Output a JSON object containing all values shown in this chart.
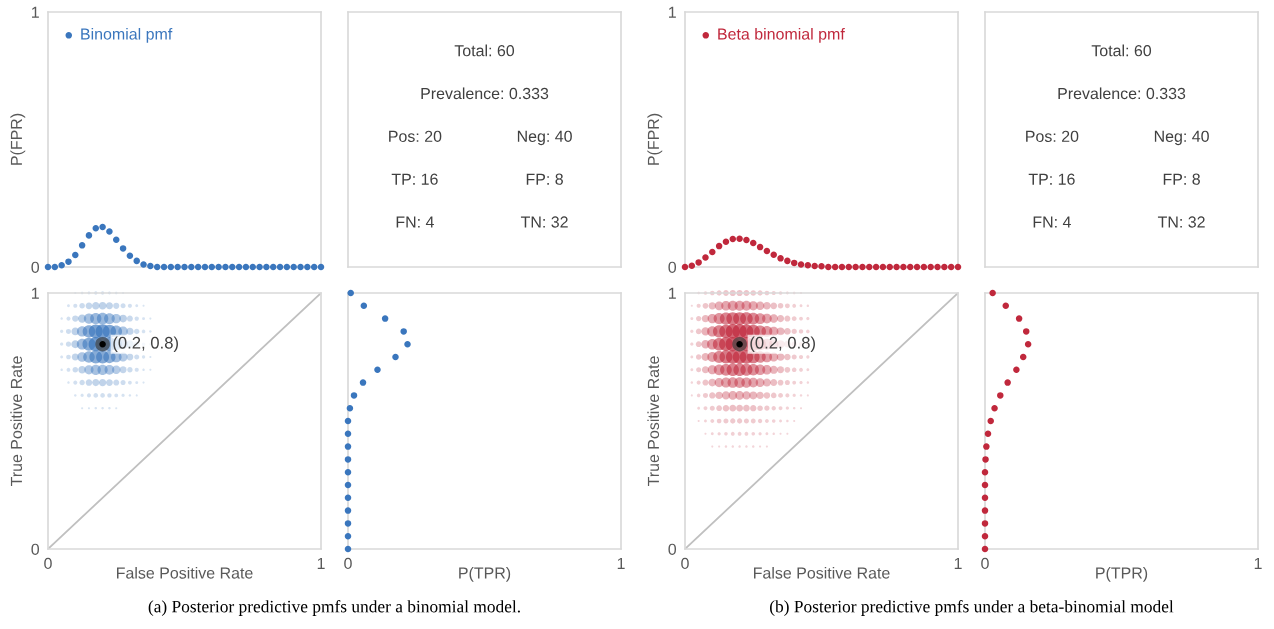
{
  "chart_data": [
    {
      "type": "scatter",
      "ylabel": "P(FPR)",
      "xlim": [
        0,
        1
      ],
      "ylim": [
        0,
        1
      ],
      "yticks": [
        0,
        1
      ],
      "tick_labels": "y",
      "legend": "top left",
      "marker": "circle",
      "x": [
        0,
        0.025,
        0.05,
        0.075,
        0.1,
        0.125,
        0.15,
        0.175,
        0.2,
        0.225,
        0.25,
        0.275,
        0.3,
        0.325,
        0.35,
        0.375,
        0.4,
        0.425,
        0.45,
        0.475,
        0.5,
        0.525,
        0.55,
        0.575,
        0.6,
        0.625,
        0.65,
        0.675,
        0.7,
        0.725,
        0.75,
        0.775,
        0.8,
        0.825,
        0.85,
        0.875,
        0.9,
        0.925,
        0.95,
        0.975,
        1
      ],
      "series": [
        {
          "name": "Binomial pmf",
          "color": "#3a76bd",
          "values": [
            0,
            0,
            0.007,
            0.021,
            0.047,
            0.085,
            0.124,
            0.152,
            0.157,
            0.139,
            0.107,
            0.073,
            0.044,
            0.024,
            0.01,
            0.004,
            0,
            0,
            0,
            0,
            0,
            0,
            0,
            0,
            0,
            0,
            0,
            0,
            0,
            0,
            0,
            0,
            0,
            0,
            0,
            0,
            0,
            0,
            0,
            0,
            0
          ]
        }
      ]
    },
    {
      "type": "other",
      "annotations": [
        "Total: 60",
        "Prevalence: 0.333",
        "Pos: 20",
        "Neg: 40",
        "TP: 16",
        "FP: 8",
        "FN: 4",
        "TN: 32"
      ]
    },
    {
      "type": "scatter",
      "ylabel": "P(FPR)",
      "xlim": [
        0,
        1
      ],
      "ylim": [
        0,
        1
      ],
      "yticks": [
        0,
        1
      ],
      "tick_labels": "y",
      "legend": "top left",
      "marker": "circle",
      "x": [
        0,
        0.025,
        0.05,
        0.075,
        0.1,
        0.125,
        0.15,
        0.175,
        0.2,
        0.225,
        0.25,
        0.275,
        0.3,
        0.325,
        0.35,
        0.375,
        0.4,
        0.425,
        0.45,
        0.475,
        0.5,
        0.525,
        0.55,
        0.575,
        0.6,
        0.625,
        0.65,
        0.675,
        0.7,
        0.725,
        0.75,
        0.775,
        0.8,
        0.825,
        0.85,
        0.875,
        0.9,
        0.925,
        0.95,
        0.975,
        1
      ],
      "series": [
        {
          "name": "Beta binomial pmf",
          "color": "#c0283c",
          "values": [
            0,
            0.005,
            0.018,
            0.037,
            0.059,
            0.082,
            0.099,
            0.11,
            0.111,
            0.106,
            0.094,
            0.078,
            0.063,
            0.048,
            0.034,
            0.024,
            0.016,
            0.01,
            0.007,
            0.004,
            0.003,
            0,
            0,
            0,
            0,
            0,
            0,
            0,
            0,
            0,
            0,
            0,
            0,
            0,
            0,
            0,
            0,
            0,
            0,
            0,
            0
          ]
        }
      ]
    },
    {
      "type": "other",
      "annotations": [
        "Total: 60",
        "Prevalence: 0.333",
        "Pos: 20",
        "Neg: 40",
        "TP: 16",
        "FP: 8",
        "FN: 4",
        "TN: 32"
      ]
    },
    {
      "type": "bubble",
      "xlabel": "False Positive Rate",
      "ylabel": "True Positive Rate",
      "xlim": [
        0,
        1
      ],
      "ylim": [
        0,
        1
      ],
      "xticks": [
        0,
        1
      ],
      "yticks": [
        0,
        1
      ],
      "annotations": [
        {
          "text": "(0.2, 0.8)",
          "x": 0.2,
          "y": 0.8
        },
        "(a) Posterior predictive pmfs under a binomial model."
      ],
      "x": [
        0.05,
        0.075,
        0.1,
        0.125,
        0.15,
        0.175,
        0.2,
        0.225,
        0.25,
        0.275,
        0.3,
        0.325,
        0.35,
        0.375
      ],
      "series": [
        {
          "type": "line",
          "color": "#c0c0c0",
          "x": [
            0,
            1
          ],
          "values": [
            0,
            1
          ]
        },
        {
          "color": "#3a76bd",
          "x": [
            0.1,
            0.125,
            0.15,
            0.175,
            0.2,
            0.225,
            0.25,
            0.275
          ],
          "values": [
            1,
            1,
            1,
            1,
            1,
            1,
            1,
            1
          ],
          "sizes": [
            0.02,
            0.03,
            0.04,
            0.05,
            0.05,
            0.04,
            0.03,
            0.02
          ]
        },
        {
          "color": "#3a76bd",
          "x": [
            0.075,
            0.1,
            0.125,
            0.15,
            0.175,
            0.2,
            0.225,
            0.25,
            0.275,
            0.3,
            0.325,
            0.35
          ],
          "values": [
            0.95,
            0.95,
            0.95,
            0.95,
            0.95,
            0.95,
            0.95,
            0.95,
            0.95,
            0.95,
            0.95,
            0.95
          ],
          "sizes": [
            0.04,
            0.08,
            0.15,
            0.21,
            0.26,
            0.27,
            0.24,
            0.18,
            0.12,
            0.08,
            0.04,
            0.02
          ]
        },
        {
          "color": "#3a76bd",
          "values": [
            0.9,
            0.9,
            0.9,
            0.9,
            0.9,
            0.9,
            0.9,
            0.9,
            0.9,
            0.9,
            0.9,
            0.9,
            0.9,
            0.9
          ],
          "sizes": [
            0.03,
            0.08,
            0.19,
            0.33,
            0.49,
            0.6,
            0.62,
            0.55,
            0.42,
            0.29,
            0.17,
            0.09,
            0.04,
            0.02
          ]
        },
        {
          "color": "#3a76bd",
          "values": [
            0.85,
            0.85,
            0.85,
            0.85,
            0.85,
            0.85,
            0.85,
            0.85,
            0.85,
            0.85,
            0.85,
            0.85,
            0.85,
            0.85
          ],
          "sizes": [
            0.05,
            0.12,
            0.28,
            0.51,
            0.74,
            0.91,
            0.94,
            0.84,
            0.64,
            0.43,
            0.26,
            0.14,
            0.06,
            0.03
          ]
        },
        {
          "color": "#3a76bd",
          "values": [
            0.8,
            0.8,
            0.8,
            0.8,
            0.8,
            0.8,
            0.8,
            0.8,
            0.8,
            0.8,
            0.8,
            0.8,
            0.8,
            0.8
          ],
          "sizes": [
            0.05,
            0.13,
            0.3,
            0.54,
            0.79,
            0.97,
            1,
            0.89,
            0.68,
            0.46,
            0.28,
            0.15,
            0.06,
            0.03
          ]
        },
        {
          "color": "#3a76bd",
          "values": [
            0.75,
            0.75,
            0.75,
            0.75,
            0.75,
            0.75,
            0.75,
            0.75,
            0.75,
            0.75,
            0.75,
            0.75,
            0.75,
            0.75
          ],
          "sizes": [
            0.04,
            0.1,
            0.24,
            0.43,
            0.63,
            0.78,
            0.8,
            0.71,
            0.54,
            0.37,
            0.22,
            0.12,
            0.05,
            0.02
          ]
        },
        {
          "color": "#3a76bd",
          "values": [
            0.7,
            0.7,
            0.7,
            0.7,
            0.7,
            0.7,
            0.7,
            0.7,
            0.7,
            0.7,
            0.7,
            0.7,
            0.7,
            0.7
          ],
          "sizes": [
            0.03,
            0.07,
            0.15,
            0.27,
            0.4,
            0.49,
            0.5,
            0.45,
            0.34,
            0.23,
            0.14,
            0.08,
            0.03,
            0.02
          ]
        },
        {
          "color": "#3a76bd",
          "x": [
            0.075,
            0.1,
            0.125,
            0.15,
            0.175,
            0.2,
            0.225,
            0.25,
            0.275,
            0.3,
            0.325,
            0.35
          ],
          "values": [
            0.65,
            0.65,
            0.65,
            0.65,
            0.65,
            0.65,
            0.65,
            0.65,
            0.65,
            0.65,
            0.65,
            0.65
          ],
          "sizes": [
            0.03,
            0.08,
            0.14,
            0.2,
            0.24,
            0.25,
            0.22,
            0.17,
            0.12,
            0.07,
            0.04,
            0.02
          ]
        },
        {
          "color": "#3a76bd",
          "x": [
            0.1,
            0.125,
            0.15,
            0.175,
            0.2,
            0.225,
            0.25,
            0.275,
            0.3,
            0.325
          ],
          "values": [
            0.6,
            0.6,
            0.6,
            0.6,
            0.6,
            0.6,
            0.6,
            0.6,
            0.6,
            0.6
          ],
          "sizes": [
            0.03,
            0.05,
            0.08,
            0.1,
            0.1,
            0.09,
            0.07,
            0.05,
            0.03,
            0.02
          ]
        },
        {
          "color": "#3a76bd",
          "x": [
            0.125,
            0.15,
            0.175,
            0.2,
            0.225,
            0.25
          ],
          "values": [
            0.55,
            0.55,
            0.55,
            0.55,
            0.55,
            0.55
          ],
          "sizes": [
            0.02,
            0.02,
            0.03,
            0.03,
            0.03,
            0.02
          ]
        },
        {
          "color": "#4d4d4d",
          "x": [
            0.2
          ],
          "values": [
            0.8
          ],
          "sizes": [
            1
          ]
        },
        {
          "type": "scatter",
          "color": "#000000",
          "x": [
            0.2
          ],
          "values": [
            0.8
          ]
        }
      ]
    },
    {
      "type": "scatter",
      "xlabel": "P(TPR)",
      "xlim": [
        0,
        1
      ],
      "ylim": [
        0,
        1
      ],
      "xticks": [
        0,
        1
      ],
      "tick_labels": "x",
      "marker": "circle",
      "series": [
        {
          "color": "#3a76bd",
          "x": [
            0.01,
            0.058,
            0.136,
            0.204,
            0.218,
            0.174,
            0.108,
            0.055,
            0.022,
            0.007,
            0,
            0,
            0,
            0,
            0,
            0,
            0,
            0,
            0,
            0,
            0
          ],
          "values": [
            1,
            0.95,
            0.9,
            0.85,
            0.8,
            0.75,
            0.7,
            0.65,
            0.6,
            0.55,
            0.5,
            0.45,
            0.4,
            0.35,
            0.3,
            0.25,
            0.2,
            0.15,
            0.1,
            0.05,
            0
          ]
        }
      ]
    },
    {
      "type": "bubble",
      "xlabel": "False Positive Rate",
      "ylabel": "True Positive Rate",
      "xlim": [
        0,
        1
      ],
      "ylim": [
        0,
        1
      ],
      "xticks": [
        0,
        1
      ],
      "yticks": [
        0,
        1
      ],
      "annotations": [
        {
          "text": "(0.2, 0.8)",
          "x": 0.2,
          "y": 0.8
        },
        "(b) Posterior predictive pmfs under a beta-binomial model"
      ],
      "x": [
        0.025,
        0.05,
        0.075,
        0.1,
        0.125,
        0.15,
        0.175,
        0.2,
        0.225,
        0.25,
        0.275,
        0.3,
        0.325,
        0.35,
        0.375,
        0.4,
        0.425,
        0.45
      ],
      "series": [
        {
          "type": "line",
          "color": "#c0c0c0",
          "x": [
            0,
            1
          ],
          "values": [
            0,
            1
          ]
        },
        {
          "color": "#c0283c",
          "x": [
            0.05,
            0.075,
            0.1,
            0.125,
            0.15,
            0.175,
            0.2,
            0.225,
            0.25,
            0.275,
            0.3,
            0.325,
            0.35,
            0.375,
            0.4,
            0.425
          ],
          "values": [
            1,
            1,
            1,
            1,
            1,
            1,
            1,
            1,
            1,
            1,
            1,
            1,
            1,
            1,
            1,
            1
          ],
          "sizes": [
            0.03,
            0.06,
            0.1,
            0.13,
            0.16,
            0.18,
            0.18,
            0.17,
            0.15,
            0.13,
            0.1,
            0.08,
            0.06,
            0.04,
            0.03,
            0.02
          ]
        },
        {
          "color": "#c0283c",
          "values": [
            0.95,
            0.95,
            0.95,
            0.95,
            0.95,
            0.95,
            0.95,
            0.95,
            0.95,
            0.95,
            0.95,
            0.95,
            0.95,
            0.95,
            0.95,
            0.95,
            0.95,
            0.95
          ],
          "sizes": [
            0.02,
            0.08,
            0.16,
            0.25,
            0.36,
            0.43,
            0.48,
            0.48,
            0.46,
            0.41,
            0.34,
            0.27,
            0.21,
            0.15,
            0.11,
            0.07,
            0.04,
            0.03
          ]
        },
        {
          "color": "#c0283c",
          "values": [
            0.9,
            0.9,
            0.9,
            0.9,
            0.9,
            0.9,
            0.9,
            0.9,
            0.9,
            0.9,
            0.9,
            0.9,
            0.9,
            0.9,
            0.9,
            0.9,
            0.9,
            0.9
          ],
          "sizes": [
            0.04,
            0.13,
            0.26,
            0.42,
            0.58,
            0.7,
            0.78,
            0.79,
            0.75,
            0.67,
            0.55,
            0.45,
            0.34,
            0.24,
            0.17,
            0.11,
            0.07,
            0.05
          ]
        },
        {
          "color": "#c0283c",
          "values": [
            0.85,
            0.85,
            0.85,
            0.85,
            0.85,
            0.85,
            0.85,
            0.85,
            0.85,
            0.85,
            0.85,
            0.85,
            0.85,
            0.85,
            0.85,
            0.85,
            0.85,
            0.85
          ],
          "sizes": [
            0.05,
            0.15,
            0.32,
            0.51,
            0.71,
            0.85,
            0.95,
            0.96,
            0.91,
            0.82,
            0.67,
            0.55,
            0.41,
            0.3,
            0.21,
            0.13,
            0.09,
            0.06
          ]
        },
        {
          "color": "#c0283c",
          "values": [
            0.8,
            0.8,
            0.8,
            0.8,
            0.8,
            0.8,
            0.8,
            0.8,
            0.8,
            0.8,
            0.8,
            0.8,
            0.8,
            0.8,
            0.8,
            0.8,
            0.8,
            0.8
          ],
          "sizes": [
            0.05,
            0.16,
            0.33,
            0.53,
            0.74,
            0.89,
            0.99,
            1,
            0.95,
            0.85,
            0.7,
            0.57,
            0.43,
            0.31,
            0.22,
            0.14,
            0.09,
            0.06
          ]
        },
        {
          "color": "#c0283c",
          "values": [
            0.75,
            0.75,
            0.75,
            0.75,
            0.75,
            0.75,
            0.75,
            0.75,
            0.75,
            0.75,
            0.75,
            0.75,
            0.75,
            0.75,
            0.75,
            0.75,
            0.75,
            0.75
          ],
          "sizes": [
            0.04,
            0.14,
            0.29,
            0.47,
            0.66,
            0.79,
            0.88,
            0.89,
            0.85,
            0.76,
            0.62,
            0.51,
            0.38,
            0.28,
            0.2,
            0.12,
            0.08,
            0.05
          ]
        },
        {
          "color": "#c0283c",
          "values": [
            0.7,
            0.7,
            0.7,
            0.7,
            0.7,
            0.7,
            0.7,
            0.7,
            0.7,
            0.7,
            0.7,
            0.7,
            0.7,
            0.7,
            0.7,
            0.7,
            0.7,
            0.7
          ],
          "sizes": [
            0.04,
            0.12,
            0.24,
            0.39,
            0.54,
            0.65,
            0.72,
            0.73,
            0.69,
            0.62,
            0.51,
            0.42,
            0.31,
            0.23,
            0.16,
            0.1,
            0.07,
            0.04
          ]
        },
        {
          "color": "#c0283c",
          "values": [
            0.65,
            0.65,
            0.65,
            0.65,
            0.65,
            0.65,
            0.65,
            0.65,
            0.65,
            0.65,
            0.65,
            0.65,
            0.65,
            0.65,
            0.65,
            0.65,
            0.65,
            0.65
          ],
          "sizes": [
            0.03,
            0.08,
            0.17,
            0.28,
            0.39,
            0.47,
            0.52,
            0.53,
            0.5,
            0.45,
            0.37,
            0.3,
            0.23,
            0.16,
            0.12,
            0.07,
            0.05,
            0.03
          ]
        },
        {
          "color": "#c0283c",
          "values": [
            0.6,
            0.6,
            0.6,
            0.6,
            0.6,
            0.6,
            0.6,
            0.6,
            0.6,
            0.6,
            0.6,
            0.6,
            0.6,
            0.6,
            0.6,
            0.6,
            0.6,
            0.6
          ],
          "sizes": [
            0.02,
            0.06,
            0.12,
            0.19,
            0.26,
            0.31,
            0.35,
            0.35,
            0.33,
            0.3,
            0.25,
            0.2,
            0.15,
            0.11,
            0.08,
            0.05,
            0.03,
            0.02
          ]
        },
        {
          "color": "#c0283c",
          "x": [
            0.05,
            0.075,
            0.1,
            0.125,
            0.15,
            0.175,
            0.2,
            0.225,
            0.25,
            0.275,
            0.3,
            0.325,
            0.35,
            0.375,
            0.4,
            0.425
          ],
          "values": [
            0.55,
            0.55,
            0.55,
            0.55,
            0.55,
            0.55,
            0.55,
            0.55,
            0.55,
            0.55,
            0.55,
            0.55,
            0.55,
            0.55,
            0.55,
            0.55
          ],
          "sizes": [
            0.04,
            0.07,
            0.12,
            0.16,
            0.2,
            0.22,
            0.22,
            0.21,
            0.19,
            0.15,
            0.13,
            0.09,
            0.07,
            0.05,
            0.03,
            0.02
          ]
        },
        {
          "color": "#c0283c",
          "x": [
            0.05,
            0.075,
            0.1,
            0.125,
            0.15,
            0.175,
            0.2,
            0.225,
            0.25,
            0.275,
            0.3,
            0.325,
            0.35,
            0.375,
            0.4
          ],
          "values": [
            0.5,
            0.5,
            0.5,
            0.5,
            0.5,
            0.5,
            0.5,
            0.5,
            0.5,
            0.5,
            0.5,
            0.5,
            0.5,
            0.5,
            0.5
          ],
          "sizes": [
            0.02,
            0.04,
            0.07,
            0.1,
            0.12,
            0.13,
            0.13,
            0.12,
            0.11,
            0.09,
            0.07,
            0.06,
            0.04,
            0.03,
            0.02
          ]
        },
        {
          "color": "#c0283c",
          "x": [
            0.075,
            0.1,
            0.125,
            0.15,
            0.175,
            0.2,
            0.225,
            0.25,
            0.275,
            0.3,
            0.325,
            0.35,
            0.375
          ],
          "values": [
            0.45,
            0.45,
            0.45,
            0.45,
            0.45,
            0.45,
            0.45,
            0.45,
            0.45,
            0.45,
            0.45,
            0.45,
            0.45
          ],
          "sizes": [
            0.02,
            0.04,
            0.05,
            0.06,
            0.07,
            0.07,
            0.07,
            0.06,
            0.05,
            0.04,
            0.03,
            0.02,
            0.02
          ]
        },
        {
          "color": "#c0283c",
          "x": [
            0.1,
            0.125,
            0.15,
            0.175,
            0.2,
            0.225,
            0.25,
            0.275,
            0.3
          ],
          "values": [
            0.4,
            0.4,
            0.4,
            0.4,
            0.4,
            0.4,
            0.4,
            0.4,
            0.4
          ],
          "sizes": [
            0.02,
            0.02,
            0.03,
            0.03,
            0.03,
            0.03,
            0.03,
            0.02,
            0.02
          ]
        },
        {
          "color": "#4d4d4d",
          "x": [
            0.2
          ],
          "values": [
            0.8
          ],
          "sizes": [
            1
          ]
        },
        {
          "type": "scatter",
          "color": "#000000",
          "x": [
            0.2
          ],
          "values": [
            0.8
          ]
        }
      ]
    },
    {
      "type": "scatter",
      "xlabel": "P(TPR)",
      "xlim": [
        0,
        1
      ],
      "ylim": [
        0,
        1
      ],
      "xticks": [
        0,
        1
      ],
      "tick_labels": "x",
      "marker": "circle",
      "series": [
        {
          "color": "#c0283c",
          "x": [
            0.028,
            0.076,
            0.125,
            0.151,
            0.158,
            0.14,
            0.115,
            0.083,
            0.056,
            0.035,
            0.021,
            0.011,
            0.005,
            0.002,
            0,
            0,
            0,
            0,
            0,
            0,
            0
          ],
          "values": [
            1,
            0.95,
            0.9,
            0.85,
            0.8,
            0.75,
            0.7,
            0.65,
            0.6,
            0.55,
            0.5,
            0.45,
            0.4,
            0.35,
            0.3,
            0.25,
            0.2,
            0.15,
            0.1,
            0.05,
            0
          ]
        }
      ]
    }
  ]
}
